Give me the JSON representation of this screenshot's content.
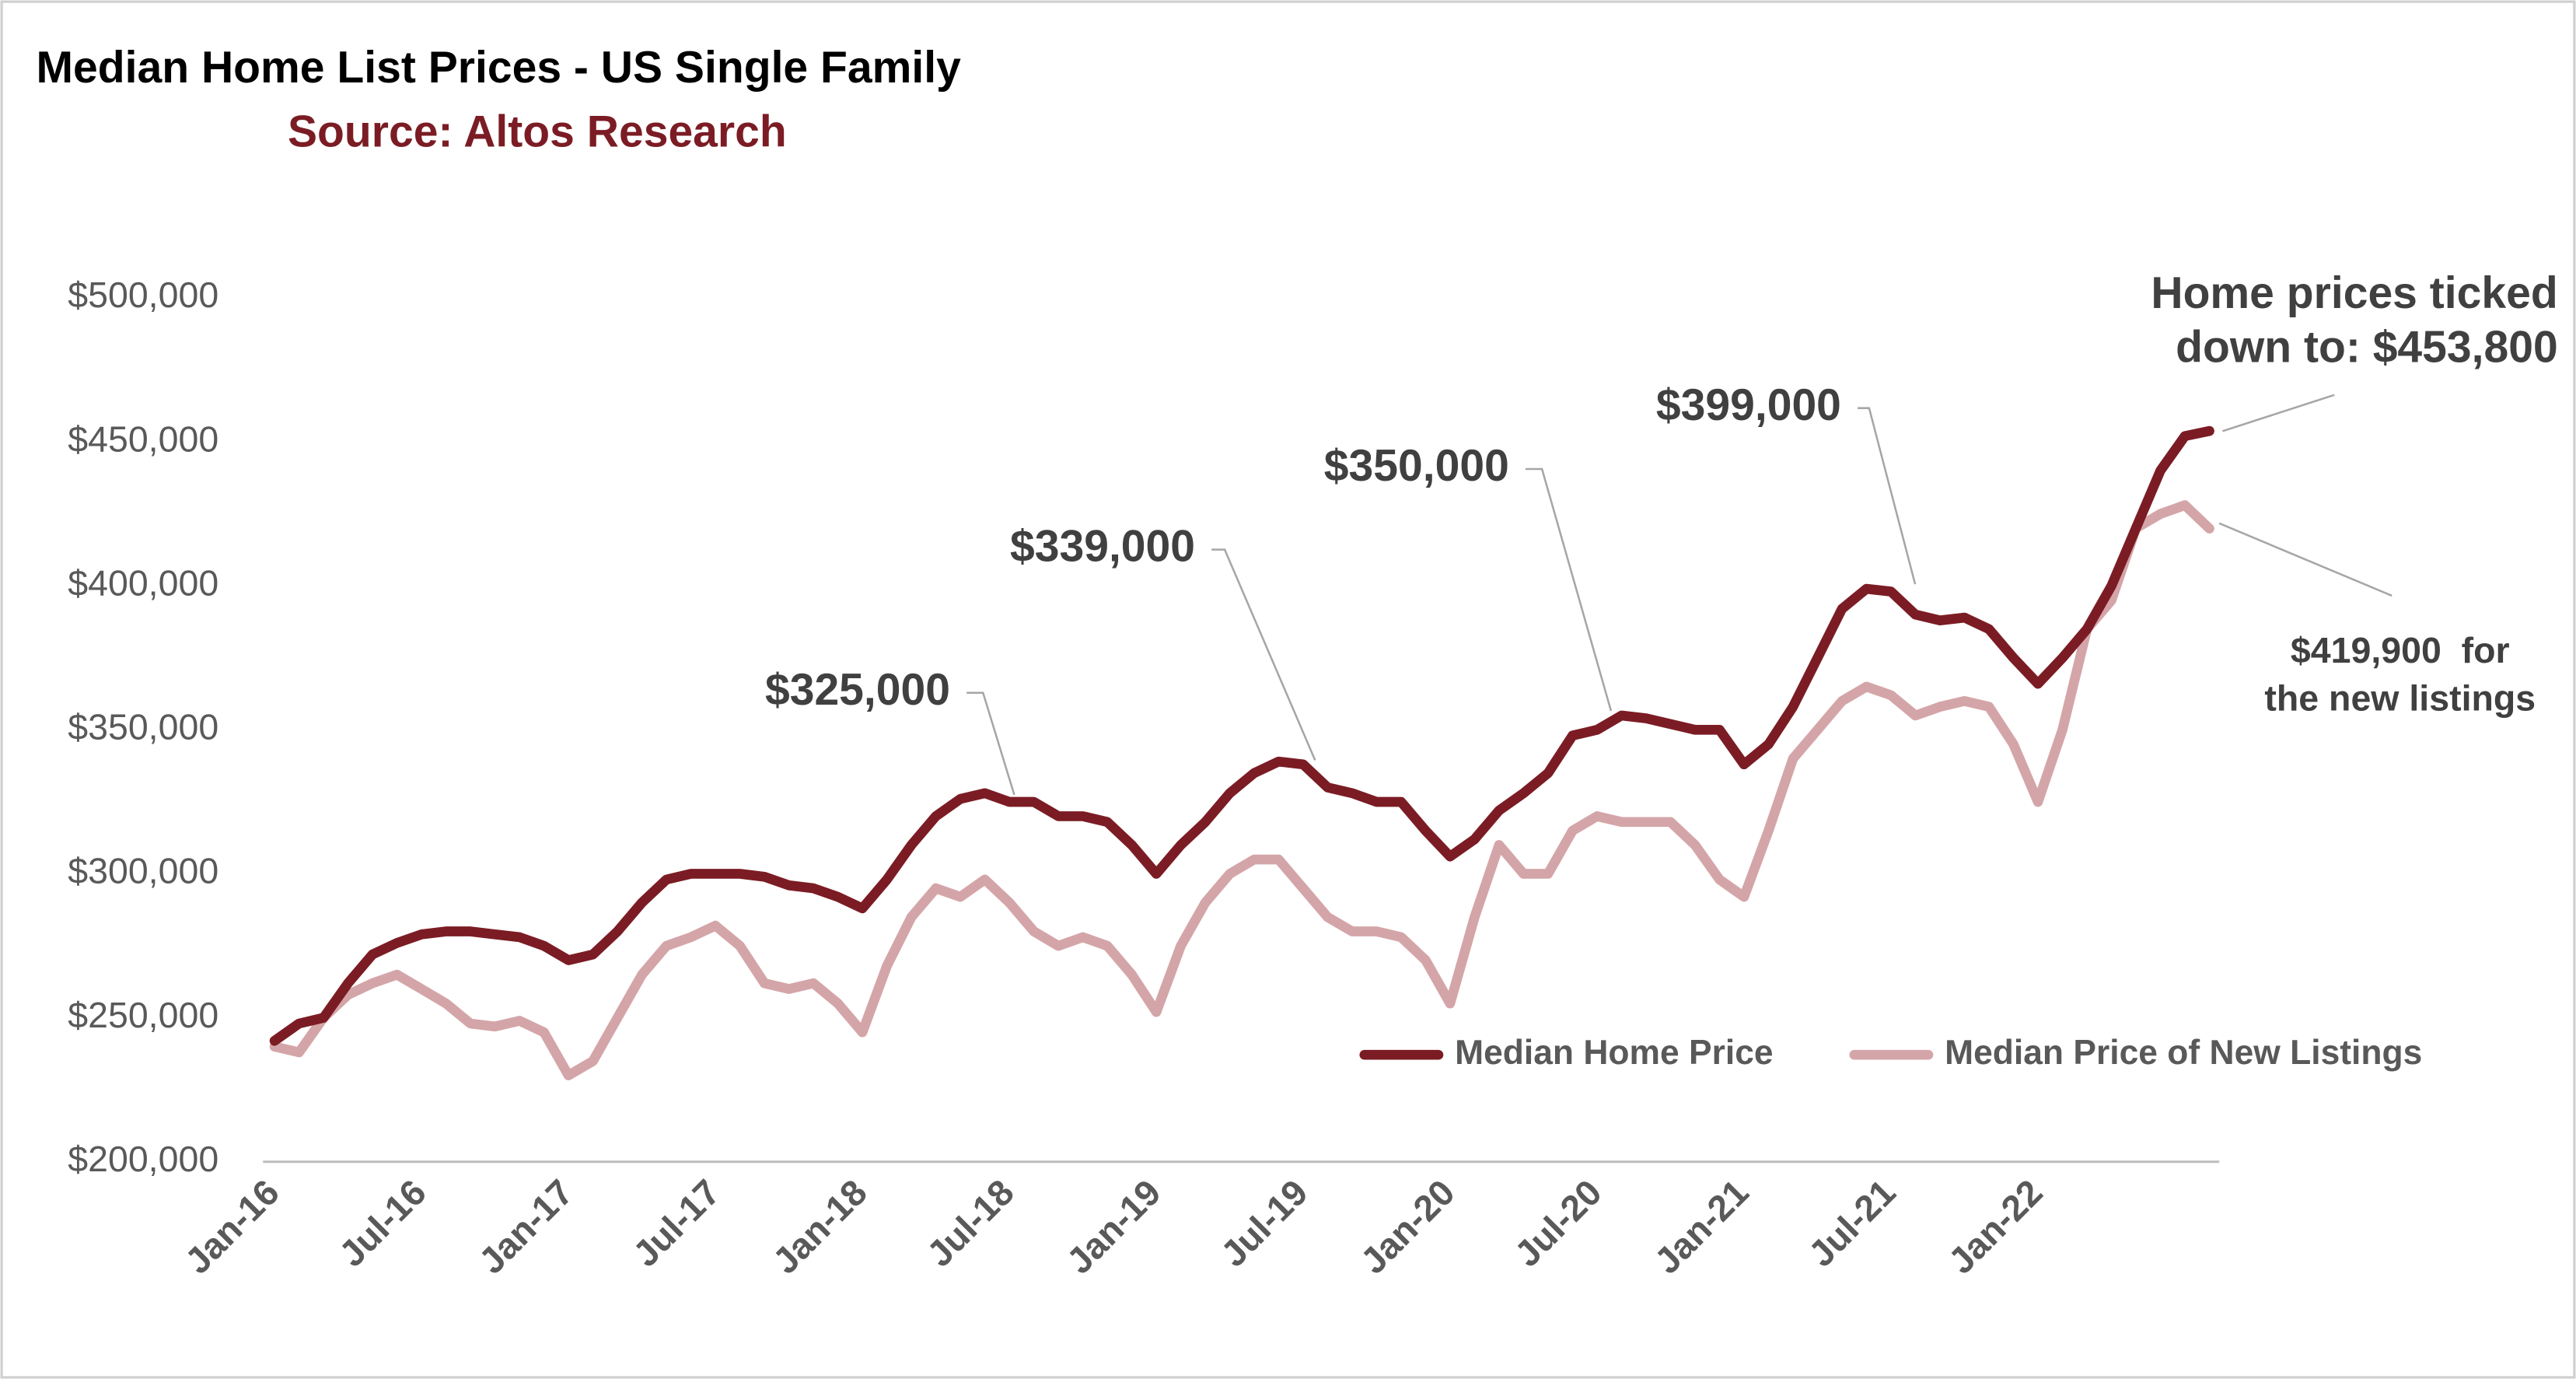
{
  "chart_data": {
    "type": "line",
    "title": "Median Home List Prices - US Single Family",
    "subtitle": "Source: Altos Research",
    "categories": [
      "Jan-16",
      null,
      null,
      null,
      null,
      null,
      "Jul-16",
      null,
      null,
      null,
      null,
      null,
      "Jan-17",
      null,
      null,
      null,
      null,
      null,
      "Jul-17",
      null,
      null,
      null,
      null,
      null,
      "Jan-18",
      null,
      null,
      null,
      null,
      null,
      "Jul-18",
      null,
      null,
      null,
      null,
      null,
      "Jan-19",
      null,
      null,
      null,
      null,
      null,
      "Jul-19",
      null,
      null,
      null,
      null,
      null,
      "Jan-20",
      null,
      null,
      null,
      null,
      null,
      "Jul-20",
      null,
      null,
      null,
      null,
      null,
      "Jan-21",
      null,
      null,
      null,
      null,
      null,
      "Jul-21",
      null,
      null,
      null,
      null,
      null,
      "Jan-22",
      null,
      null,
      null,
      null,
      null,
      null,
      null
    ],
    "series": [
      {
        "name": "Median Home Price",
        "color": "#7b1c24",
        "values": [
          242000,
          248000,
          250000,
          262000,
          272000,
          276000,
          279000,
          280000,
          280000,
          279000,
          278000,
          275000,
          270000,
          272000,
          280000,
          290000,
          298000,
          300000,
          300000,
          300000,
          299000,
          296000,
          295000,
          292000,
          288000,
          298000,
          310000,
          320000,
          326000,
          328000,
          325000,
          325000,
          320000,
          320000,
          318000,
          310000,
          300000,
          310000,
          318000,
          328000,
          335000,
          339000,
          338000,
          330000,
          328000,
          325000,
          325000,
          315000,
          306000,
          312000,
          322000,
          328000,
          335000,
          348000,
          350000,
          355000,
          354000,
          352000,
          350000,
          350000,
          338000,
          345000,
          358000,
          375000,
          392000,
          399000,
          398000,
          390000,
          388000,
          389000,
          385000,
          375000,
          366000,
          375000,
          385000,
          400000,
          420000,
          440000,
          452000,
          453800
        ]
      },
      {
        "name": "Median Price of New Listings",
        "color": "#d4a5a8",
        "values": [
          240000,
          238000,
          250000,
          258000,
          262000,
          265000,
          260000,
          255000,
          248000,
          247000,
          249000,
          245000,
          230000,
          235000,
          250000,
          265000,
          275000,
          278000,
          282000,
          275000,
          262000,
          260000,
          262000,
          255000,
          245000,
          268000,
          285000,
          295000,
          292000,
          298000,
          290000,
          280000,
          275000,
          278000,
          275000,
          265000,
          252000,
          275000,
          290000,
          300000,
          305000,
          305000,
          295000,
          285000,
          280000,
          280000,
          278000,
          270000,
          255000,
          285000,
          310000,
          300000,
          300000,
          315000,
          320000,
          318000,
          318000,
          318000,
          310000,
          298000,
          292000,
          315000,
          340000,
          350000,
          360000,
          365000,
          362000,
          355000,
          358000,
          360000,
          358000,
          345000,
          325000,
          350000,
          385000,
          395000,
          420000,
          425000,
          428000,
          419900
        ]
      }
    ],
    "ylim": [
      200000,
      500000
    ],
    "yticks": [
      {
        "value": 200000,
        "label": "$200,000"
      },
      {
        "value": 250000,
        "label": "$250,000"
      },
      {
        "value": 300000,
        "label": "$300,000"
      },
      {
        "value": 350000,
        "label": "$350,000"
      },
      {
        "value": 400000,
        "label": "$400,000"
      },
      {
        "value": 450000,
        "label": "$450,000"
      },
      {
        "value": 500000,
        "label": "$500,000"
      }
    ],
    "grid": false,
    "legend": "lower right",
    "annotations": [
      "$325,000",
      "$339,000",
      "$350,000",
      "$399,000",
      [
        "Home prices ticked",
        "down to: $453,800"
      ],
      [
        "$419,900  for",
        "the new listings"
      ]
    ]
  }
}
